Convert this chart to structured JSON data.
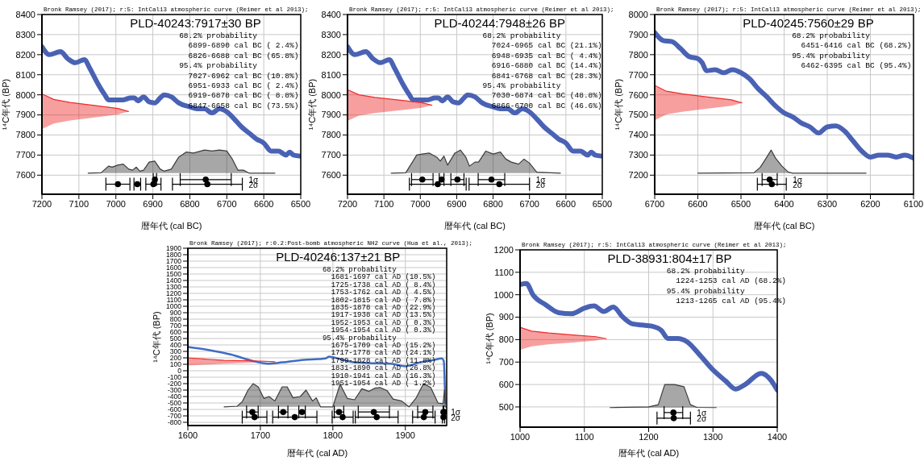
{
  "chart_data": [
    {
      "type": "line",
      "title": "PLD-40243:7917±30 BP",
      "xlabel": "暦年代 (cal BC)",
      "ylabel": "¹⁴C年代 (BP)",
      "annotations": [
        "Bronk Ramsey (2017); r:5: IntCal13 atmospheric curve (Reimer et al 2013);",
        "68.2% probability",
        "  6899-6890 cal BC ( 2.4%)",
        "  6826-6688 cal BC (65.8%)",
        "95.4% probability",
        "  7027-6962 cal BC (10.8%)",
        "  6951-6933 cal BC ( 2.4%)",
        "  6919-6878 cal BC ( 8.8%)",
        "  6847-6658 cal BC (73.5%)"
      ],
      "xlim": [
        7200,
        6500
      ],
      "xticks": [
        7200,
        7100,
        7000,
        6900,
        6800,
        6700,
        6600,
        6500
      ],
      "ylim": [
        7505,
        8400
      ],
      "yticks": [
        7600,
        7700,
        7800,
        7900,
        8000,
        8100,
        8200,
        8300,
        8400
      ],
      "grid": true,
      "series": [
        {
          "type": "line",
          "color": "#4a62b4",
          "x": [
            7200,
            7180,
            7150,
            7130,
            7110,
            7085,
            7070,
            7050,
            7030,
            7020,
            7000,
            6980,
            6960,
            6950,
            6940,
            6925,
            6910,
            6895,
            6880,
            6870,
            6850,
            6830,
            6800,
            6780,
            6760,
            6740,
            6720,
            6700,
            6680,
            6660,
            6640,
            6620,
            6600,
            6580,
            6560,
            6540,
            6530,
            6520,
            6500
          ],
          "values": [
            8240,
            8200,
            8215,
            8180,
            8160,
            8175,
            8130,
            8060,
            8000,
            7975,
            7975,
            7975,
            7985,
            7985,
            7970,
            7990,
            7965,
            7960,
            7985,
            8000,
            7990,
            7960,
            7940,
            7930,
            7930,
            7910,
            7930,
            7915,
            7880,
            7840,
            7810,
            7780,
            7760,
            7720,
            7720,
            7700,
            7715,
            7700,
            7695
          ]
        },
        {
          "type": "line",
          "color": "#3c3c3c",
          "x": [
            7075,
            7040,
            7020,
            7010,
            6995,
            6980,
            6965,
            6955,
            6945,
            6935,
            6925,
            6910,
            6895,
            6880,
            6870,
            6850,
            6830,
            6810,
            6790,
            6760,
            6740,
            6720,
            6700,
            6685,
            6670,
            6655,
            6640,
            6570
          ],
          "values": [
            7610,
            7612,
            7645,
            7640,
            7650,
            7655,
            7630,
            7625,
            7640,
            7620,
            7625,
            7665,
            7670,
            7630,
            7620,
            7630,
            7690,
            7715,
            7710,
            7725,
            7720,
            7725,
            7720,
            7680,
            7625,
            7625,
            7610,
            7610
          ],
          "lower": [
            7610,
            7610,
            7610,
            7610,
            7610,
            7610,
            7610,
            7610,
            7610,
            7610,
            7610,
            7610,
            7610,
            7610,
            7610,
            7610,
            7610,
            7610,
            7610,
            7610,
            7610,
            7610,
            7610,
            7610,
            7610,
            7610,
            7610,
            7610
          ],
          "upper": [
            7610,
            7612,
            7645,
            7640,
            7650,
            7655,
            7630,
            7625,
            7640,
            7620,
            7625,
            7665,
            7670,
            7630,
            7620,
            7630,
            7690,
            7715,
            7710,
            7725,
            7720,
            7725,
            7720,
            7680,
            7625,
            7625,
            7610,
            7610
          ]
        },
        {
          "type": "line",
          "color": "#ee2a2a",
          "x": [
            7200,
            7168,
            7124,
            7058,
            6994,
            6966
          ],
          "values": [
            8005,
            7977,
            7962,
            7947,
            7932,
            7917
          ],
          "lower": [
            7830,
            7857,
            7872,
            7887,
            7902,
            7917
          ],
          "upper": [
            8005,
            7977,
            7962,
            7947,
            7932,
            7917
          ]
        },
        {
          "type": "scatter",
          "name": "1σ",
          "color": "#000000",
          "marker": "circle",
          "x": [
            6894.5,
            6757
          ],
          "values": [
            7578,
            7578
          ],
          "xerrors": [
            4.5,
            69
          ]
        },
        {
          "type": "scatter",
          "name": "2σ",
          "color": "#000000",
          "marker": "circle",
          "x": [
            6994.5,
            6942,
            6898.5,
            6752.5
          ],
          "values": [
            7555,
            7555,
            7555,
            7555
          ],
          "xerrors": [
            32.5,
            9,
            20.5,
            94.5
          ]
        }
      ]
    },
    {
      "type": "line",
      "title": "PLD-40244:7948±26 BP",
      "xlabel": "暦年代 (cal BC)",
      "ylabel": "¹⁴C年代 (BP)",
      "annotations": [
        "Bronk Ramsey (2017); r:5: IntCal13 atmospheric curve (Reimer et al 2013);",
        "68.2% probability",
        "  7024-6965 cal BC (21.1%)",
        "  6948-6935 cal BC ( 4.4%)",
        "  6916-6880 cal BC (14.4%)",
        "  6841-6768 cal BC (28.3%)",
        "95.4% probability",
        "  7030-6874 cal BC (48.8%)",
        "  6866-6700 cal BC (46.6%)"
      ],
      "xlim": [
        7200,
        6500
      ],
      "xticks": [
        7200,
        7100,
        7000,
        6900,
        6800,
        6700,
        6600,
        6500
      ],
      "ylim": [
        7505,
        8400
      ],
      "yticks": [
        7600,
        7700,
        7800,
        7900,
        8000,
        8100,
        8200,
        8300,
        8400
      ],
      "grid": true,
      "series": [
        {
          "type": "line",
          "color": "#4a62b4",
          "x": [
            7200,
            7180,
            7150,
            7130,
            7110,
            7085,
            7070,
            7050,
            7030,
            7020,
            7000,
            6980,
            6960,
            6950,
            6940,
            6925,
            6910,
            6895,
            6880,
            6870,
            6850,
            6830,
            6800,
            6780,
            6760,
            6740,
            6720,
            6700,
            6680,
            6660,
            6640,
            6620,
            6600,
            6580,
            6560,
            6540,
            6530,
            6520,
            6500
          ],
          "values": [
            8240,
            8200,
            8215,
            8180,
            8160,
            8175,
            8130,
            8060,
            8000,
            7975,
            7975,
            7975,
            7985,
            7985,
            7970,
            7990,
            7965,
            7960,
            7985,
            8000,
            7990,
            7960,
            7940,
            7930,
            7930,
            7910,
            7930,
            7915,
            7880,
            7840,
            7810,
            7780,
            7760,
            7720,
            7720,
            7700,
            7715,
            7700,
            7695
          ]
        },
        {
          "type": "line",
          "color": "#3c3c3c",
          "x": [
            7080,
            7040,
            7020,
            7010,
            6995,
            6975,
            6955,
            6945,
            6935,
            6925,
            6905,
            6890,
            6875,
            6865,
            6850,
            6840,
            6820,
            6800,
            6780,
            6765,
            6750,
            6730,
            6715,
            6700,
            6680,
            6615
          ],
          "values": [
            7610,
            7612,
            7670,
            7700,
            7705,
            7710,
            7690,
            7670,
            7695,
            7650,
            7710,
            7725,
            7690,
            7645,
            7665,
            7665,
            7720,
            7705,
            7715,
            7680,
            7665,
            7655,
            7680,
            7660,
            7615,
            7610
          ],
          "lower": [
            7610,
            7610,
            7610,
            7610,
            7610,
            7610,
            7610,
            7610,
            7610,
            7610,
            7610,
            7610,
            7610,
            7610,
            7610,
            7610,
            7610,
            7610,
            7610,
            7610,
            7610,
            7610,
            7610,
            7610,
            7610,
            7610
          ],
          "upper": [
            7610,
            7612,
            7670,
            7700,
            7705,
            7710,
            7690,
            7670,
            7695,
            7650,
            7710,
            7725,
            7690,
            7645,
            7665,
            7665,
            7720,
            7705,
            7715,
            7680,
            7665,
            7655,
            7680,
            7660,
            7615,
            7610
          ]
        },
        {
          "type": "line",
          "color": "#ee2a2a",
          "x": [
            7200,
            7169,
            7125,
            7059,
            6996,
            6968
          ],
          "values": [
            8026,
            8000,
            7987,
            7974,
            7961,
            7948
          ],
          "lower": [
            7870,
            7896,
            7909,
            7922,
            7935,
            7948
          ],
          "upper": [
            8026,
            8000,
            7987,
            7974,
            7961,
            7948
          ]
        },
        {
          "type": "scatter",
          "name": "1σ",
          "color": "#000000",
          "marker": "circle",
          "x": [
            6994.5,
            6941.5,
            6898,
            6804.5
          ],
          "values": [
            7578,
            7578,
            7578,
            7578
          ],
          "xerrors": [
            29.5,
            6.5,
            18,
            36.5
          ]
        },
        {
          "type": "scatter",
          "name": "2σ",
          "color": "#000000",
          "marker": "circle",
          "x": [
            6952,
            6783
          ],
          "values": [
            7555,
            7555
          ],
          "xerrors": [
            78,
            83
          ]
        }
      ]
    },
    {
      "type": "line",
      "title": "PLD-40245:7560±29 BP",
      "xlabel": "暦年代 (cal BC)",
      "ylabel": "¹⁴C年代 (BP)",
      "annotations": [
        "Bronk Ramsey (2017); r:5: IntCal13 atmospheric curve (Reimer et al 2013);",
        "68.2% probability",
        "  6451-6416 cal BC (68.2%)",
        "95.4% probability",
        "  6462-6395 cal BC (95.4%)"
      ],
      "xlim": [
        6700,
        6100
      ],
      "xticks": [
        6700,
        6600,
        6500,
        6400,
        6300,
        6200,
        6100
      ],
      "ylim": [
        7105,
        8000
      ],
      "yticks": [
        7200,
        7300,
        7400,
        7500,
        7600,
        7700,
        7800,
        7900,
        8000
      ],
      "grid": true,
      "series": [
        {
          "type": "line",
          "color": "#4a62b4",
          "x": [
            6700,
            6680,
            6660,
            6640,
            6620,
            6600,
            6590,
            6580,
            6560,
            6540,
            6520,
            6500,
            6480,
            6460,
            6440,
            6420,
            6400,
            6380,
            6360,
            6340,
            6320,
            6300,
            6280,
            6260,
            6240,
            6220,
            6200,
            6180,
            6160,
            6140,
            6120,
            6100
          ],
          "values": [
            7910,
            7870,
            7865,
            7830,
            7790,
            7780,
            7760,
            7720,
            7725,
            7710,
            7725,
            7710,
            7680,
            7630,
            7590,
            7545,
            7510,
            7490,
            7460,
            7440,
            7410,
            7440,
            7445,
            7420,
            7370,
            7320,
            7290,
            7300,
            7300,
            7290,
            7300,
            7285
          ]
        },
        {
          "type": "line",
          "color": "#3c3c3c",
          "x": [
            6600,
            6470,
            6455,
            6440,
            6430,
            6420,
            6405,
            6390,
            6380,
            6210
          ],
          "values": [
            7210,
            7212,
            7240,
            7290,
            7325,
            7285,
            7245,
            7215,
            7210,
            7210
          ],
          "lower": [
            7210,
            7210,
            7210,
            7210,
            7210,
            7210,
            7210,
            7210,
            7210,
            7210
          ],
          "upper": [
            7210,
            7212,
            7240,
            7290,
            7325,
            7285,
            7245,
            7215,
            7210,
            7210
          ]
        },
        {
          "type": "line",
          "color": "#ee2a2a",
          "x": [
            6700,
            6673,
            6634,
            6577,
            6522,
            6498
          ],
          "values": [
            7647,
            7618,
            7604,
            7589,
            7575,
            7560
          ],
          "lower": [
            7473,
            7502,
            7516,
            7531,
            7545,
            7560
          ],
          "upper": [
            7647,
            7618,
            7604,
            7589,
            7575,
            7560
          ]
        },
        {
          "type": "scatter",
          "name": "1σ",
          "color": "#000000",
          "marker": "circle",
          "x": [
            6433.5
          ],
          "values": [
            7178
          ],
          "xerrors": [
            17.5
          ]
        },
        {
          "type": "scatter",
          "name": "2σ",
          "color": "#000000",
          "marker": "circle",
          "x": [
            6428.5
          ],
          "values": [
            7155
          ],
          "xerrors": [
            33.5
          ]
        }
      ]
    },
    {
      "type": "line",
      "title": "PLD-40246:137±21 BP",
      "xlabel": "暦年代 (cal AD)",
      "ylabel": "¹⁴C年代 (BP)",
      "annotations": [
        "Bronk Ramsey (2017); r:0.2:Post-bomb atmospheric NH2 curve (Hua et al., 2013);",
        "68.2% probability",
        "  1681-1697 cal AD (10.5%)",
        "  1725-1738 cal AD ( 8.4%)",
        "  1753-1762 cal AD ( 4.5%)",
        "  1802-1815 cal AD ( 7.8%)",
        "  1835-1878 cal AD (22.9%)",
        "  1917-1938 cal AD (13.5%)",
        "  1952-1953 cal AD ( 0.3%)",
        "  1954-1954 cal AD ( 0.3%)",
        "95.4% probability",
        "  1675-1709 cal AD (15.2%)",
        "  1717-1778 cal AD (24.1%)",
        "  1799-1828 cal AD (11.8%)",
        "  1831-1890 cal AD (26.8%)",
        "  1910-1941 cal AD (16.3%)",
        "  1951-1954 cal AD ( 1.2%)"
      ],
      "xlim": [
        1600,
        1957
      ],
      "xticks": [
        1600,
        1700,
        1800,
        1900
      ],
      "ylim": [
        -850,
        1900
      ],
      "yticks": [
        -800,
        -700,
        -600,
        -500,
        -400,
        -300,
        -200,
        -100,
        0,
        100,
        200,
        300,
        400,
        500,
        600,
        700,
        800,
        900,
        1000,
        1100,
        1200,
        1300,
        1400,
        1500,
        1600,
        1700,
        1800,
        1900
      ],
      "grid": true,
      "series": [
        {
          "type": "line",
          "color": "#3f6cc4",
          "x": [
            1600,
            1630,
            1660,
            1690,
            1710,
            1730,
            1760,
            1780,
            1790,
            1795,
            1800,
            1810,
            1830,
            1850,
            1880,
            1900,
            1920,
            1940,
            1950,
            1953,
            1955
          ],
          "values": [
            370,
            320,
            250,
            150,
            110,
            130,
            170,
            180,
            190,
            220,
            210,
            180,
            130,
            120,
            110,
            70,
            130,
            170,
            190,
            150,
            -500
          ]
        },
        {
          "type": "line",
          "color": "#3c3c3c",
          "x": [
            1650,
            1668,
            1675,
            1683,
            1690,
            1697,
            1705,
            1712,
            1720,
            1730,
            1737,
            1745,
            1755,
            1763,
            1772,
            1777,
            1783,
            1800,
            1810,
            1820,
            1830,
            1840,
            1850,
            1858,
            1865,
            1875,
            1883,
            1895,
            1905,
            1915,
            1925,
            1935,
            1945,
            1952,
            1954,
            1955,
            1957
          ],
          "values": [
            -560,
            -550,
            -480,
            -300,
            -200,
            -250,
            -430,
            -400,
            -470,
            -250,
            -250,
            -420,
            -400,
            -300,
            -470,
            -420,
            -560,
            -560,
            -210,
            -430,
            -450,
            -280,
            -320,
            -270,
            -260,
            -310,
            -440,
            -470,
            -560,
            -420,
            -200,
            -260,
            -500,
            -510,
            -300,
            -560,
            -560
          ],
          "lower": [
            -560,
            -560,
            -560,
            -560,
            -560,
            -560,
            -560,
            -560,
            -560,
            -560,
            -560,
            -560,
            -560,
            -560,
            -560,
            -560,
            -560,
            -560,
            -560,
            -560,
            -560,
            -560,
            -560,
            -560,
            -560,
            -560,
            -560,
            -560,
            -560,
            -560,
            -560,
            -560,
            -560,
            -560,
            -560,
            -560,
            -560
          ],
          "upper": [
            -560,
            -550,
            -480,
            -300,
            -200,
            -250,
            -430,
            -400,
            -470,
            -250,
            -250,
            -420,
            -400,
            -300,
            -470,
            -420,
            -560,
            -560,
            -210,
            -430,
            -450,
            -280,
            -320,
            -270,
            -260,
            -310,
            -440,
            -470,
            -560,
            -420,
            -200,
            -260,
            -500,
            -510,
            -300,
            -560,
            -560
          ]
        },
        {
          "type": "line",
          "color": "#ee2a2a",
          "x": [
            1600,
            1650,
            1700,
            1720
          ],
          "values": [
            200,
            160,
            150,
            140
          ],
          "lower": [
            80,
            110,
            130,
            140
          ],
          "upper": [
            200,
            160,
            150,
            140
          ]
        },
        {
          "type": "scatter",
          "name": "1σ",
          "color": "#000000",
          "marker": "circle",
          "x": [
            1689,
            1731.5,
            1757.5,
            1808.5,
            1856.5,
            1927.5,
            1952.5,
            1954
          ],
          "values": [
            -640,
            -640,
            -640,
            -640,
            -640,
            -640,
            -640,
            -640
          ],
          "xerrors": [
            8,
            6.5,
            4.5,
            6.5,
            21.5,
            10.5,
            0.5,
            0
          ]
        },
        {
          "type": "scatter",
          "name": "2σ",
          "color": "#000000",
          "marker": "circle",
          "x": [
            1692,
            1747.5,
            1813.5,
            1860.5,
            1925.5,
            1952.5
          ],
          "values": [
            -720,
            -720,
            -720,
            -720,
            -720,
            -720
          ],
          "xerrors": [
            17,
            30.5,
            14.5,
            29.5,
            15.5,
            1.5
          ]
        }
      ]
    },
    {
      "type": "line",
      "title": "PLD-38931:804±17 BP",
      "xlabel": "暦年代 (cal AD)",
      "ylabel": "¹⁴C年代 (BP)",
      "annotations": [
        "Bronk Ramsey (2017); r:5: IntCal13 atmospheric curve (Reimer et al 2013);",
        "68.2% probability",
        "  1224-1253 cal AD (68.2%)",
        "95.4% probability",
        "  1213-1265 cal AD (95.4%)"
      ],
      "xlim": [
        1000,
        1400
      ],
      "xticks": [
        1000,
        1100,
        1200,
        1300,
        1400
      ],
      "ylim": [
        410,
        1200
      ],
      "yticks": [
        500,
        600,
        700,
        800,
        900,
        1000,
        1100,
        1200
      ],
      "grid": true,
      "series": [
        {
          "type": "line",
          "color": "#4a62b4",
          "x": [
            1000,
            1010,
            1020,
            1040,
            1060,
            1080,
            1100,
            1115,
            1130,
            1145,
            1160,
            1175,
            1190,
            1205,
            1220,
            1230,
            1245,
            1260,
            1280,
            1300,
            1320,
            1335,
            1350,
            1375,
            1390,
            1400
          ],
          "values": [
            1045,
            1050,
            1000,
            955,
            920,
            915,
            940,
            950,
            925,
            945,
            900,
            870,
            865,
            860,
            840,
            805,
            805,
            790,
            730,
            665,
            615,
            580,
            600,
            650,
            620,
            575
          ]
        },
        {
          "type": "line",
          "color": "#3c3c3c",
          "x": [
            1140,
            1200,
            1215,
            1225,
            1240,
            1255,
            1265,
            1275,
            1305
          ],
          "values": [
            497,
            500,
            510,
            600,
            600,
            590,
            510,
            498,
            497
          ],
          "lower": [
            497,
            497,
            497,
            497,
            497,
            497,
            497,
            497,
            497
          ],
          "upper": [
            497,
            500,
            510,
            600,
            600,
            590,
            510,
            498,
            497
          ]
        },
        {
          "type": "line",
          "color": "#ee2a2a",
          "x": [
            1000,
            1018,
            1044,
            1082,
            1118,
            1134
          ],
          "values": [
            855,
            838,
            830,
            821,
            813,
            804
          ],
          "lower": [
            755,
            770,
            779,
            787,
            796,
            804
          ],
          "upper": [
            855,
            838,
            830,
            821,
            813,
            804
          ]
        },
        {
          "type": "scatter",
          "name": "1σ",
          "color": "#000000",
          "marker": "circle",
          "x": [
            1238.5
          ],
          "values": [
            475
          ],
          "xerrors": [
            14.5
          ]
        },
        {
          "type": "scatter",
          "name": "2σ",
          "color": "#000000",
          "marker": "circle",
          "x": [
            1239
          ],
          "values": [
            450
          ],
          "xerrors": [
            26
          ]
        }
      ]
    }
  ]
}
